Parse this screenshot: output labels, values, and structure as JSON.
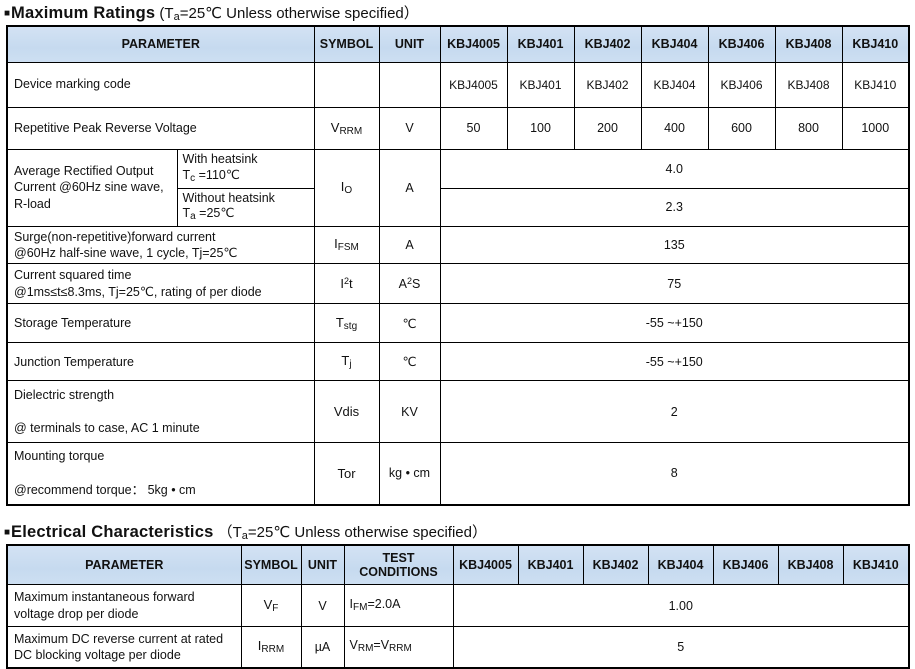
{
  "colors": {
    "header_bg": "#C9DCF0",
    "border": "#000000",
    "text": "#111111"
  },
  "models": [
    "KBJ4005",
    "KBJ401",
    "KBJ402",
    "KBJ404",
    "KBJ406",
    "KBJ408",
    "KBJ410"
  ],
  "section1": {
    "bullet": "■",
    "title": "Maximum Ratings",
    "cond": [
      {
        "t": "(T"
      },
      {
        "sub": "a"
      },
      {
        "t": "=25℃ Unless otherwise specified）"
      }
    ]
  },
  "section2": {
    "bullet": "■",
    "title": "Electrical Characteristics",
    "cond": [
      {
        "t": "（T"
      },
      {
        "sub": "a"
      },
      {
        "t": "=25℃ Unless otherwise specified）"
      }
    ]
  },
  "t1": {
    "headers": {
      "parameter": "PARAMETER",
      "symbol": "SYMBOL",
      "unit": "UNIT"
    },
    "rows": {
      "device": {
        "param": "Device marking code",
        "values": [
          "KBJ4005",
          "KBJ401",
          "KBJ402",
          "KBJ404",
          "KBJ406",
          "KBJ408",
          "KBJ410"
        ]
      },
      "vrrm": {
        "param": "Repetitive Peak Reverse Voltage",
        "symbol": [
          {
            "t": "V"
          },
          {
            "sub": "RRM"
          }
        ],
        "unit": "V",
        "values": [
          "50",
          "100",
          "200",
          "400",
          "600",
          "800",
          "1000"
        ]
      },
      "io": {
        "param": "Average Rectified Output Current @60Hz sine wave, R-load",
        "cond_with": [
          {
            "t": "With heatsink"
          },
          {
            "br": true
          },
          {
            "t": " T"
          },
          {
            "sub": "c"
          },
          {
            "t": " =110℃"
          }
        ],
        "cond_without": [
          {
            "t": "Without heatsink"
          },
          {
            "br": true
          },
          {
            "t": "T"
          },
          {
            "sub": "a"
          },
          {
            "t": " =25℃"
          }
        ],
        "symbol": [
          {
            "t": "I"
          },
          {
            "sub": "O"
          }
        ],
        "unit": "A",
        "value_with": "4.0",
        "value_without": "2.3"
      },
      "ifsm": {
        "param": [
          {
            "t": "Surge(non-repetitive)forward current"
          },
          {
            "br": true
          },
          {
            "t": "@60Hz half-sine wave, 1 cycle, Tj=25℃"
          }
        ],
        "symbol": [
          {
            "t": "I"
          },
          {
            "sub": "FSM"
          }
        ],
        "unit": "A",
        "value": "135"
      },
      "i2t": {
        "param": [
          {
            "t": "Current squared time"
          },
          {
            "br": true
          },
          {
            "t": "@1ms≤t≤8.3ms, Tj=25℃, rating of per diode"
          }
        ],
        "symbol": [
          {
            "t": "I"
          },
          {
            "sup": "2"
          },
          {
            "t": "t"
          }
        ],
        "unit": [
          {
            "t": "A"
          },
          {
            "sup": "2"
          },
          {
            "t": "S"
          }
        ],
        "value": "75"
      },
      "tstg": {
        "param": "Storage Temperature",
        "symbol": [
          {
            "t": "T"
          },
          {
            "sub": "stg"
          }
        ],
        "unit": "℃",
        "value": "-55 ~+150"
      },
      "tj": {
        "param": "Junction Temperature",
        "symbol": [
          {
            "t": "T"
          },
          {
            "sub": "j"
          }
        ],
        "unit": "℃",
        "value": "-55 ~+150"
      },
      "vdis": {
        "param_line1": "Dielectric strength",
        "param_line2": "@ terminals to case, AC 1 minute",
        "symbol": "Vdis",
        "unit": "KV",
        "value": "2"
      },
      "tor": {
        "param_line1": "Mounting torque",
        "param_line2": "@recommend torque： 5kg • cm",
        "symbol": "Tor",
        "unit": "kg • cm",
        "value": "8"
      }
    }
  },
  "t2": {
    "headers": {
      "parameter": "PARAMETER",
      "symbol": "SYMBOL",
      "unit": "UNIT",
      "test_conditions": "TEST CONDITIONS"
    },
    "rows": {
      "vf": {
        "param": "Maximum instantaneous forward voltage drop per diode",
        "symbol": [
          {
            "t": "V"
          },
          {
            "sub": "F"
          }
        ],
        "unit": "V",
        "test": [
          {
            "t": "I"
          },
          {
            "sub": "FM"
          },
          {
            "t": "=2.0A"
          }
        ],
        "value": "1.00"
      },
      "irrm": {
        "param": "Maximum DC reverse current at rated DC blocking voltage per diode",
        "symbol": [
          {
            "t": "I"
          },
          {
            "sub": "RRM"
          }
        ],
        "unit": "µA",
        "test": [
          {
            "t": "V"
          },
          {
            "sub": "RM"
          },
          {
            "t": "=V"
          },
          {
            "sub": "RRM"
          }
        ],
        "value": "5"
      }
    }
  }
}
